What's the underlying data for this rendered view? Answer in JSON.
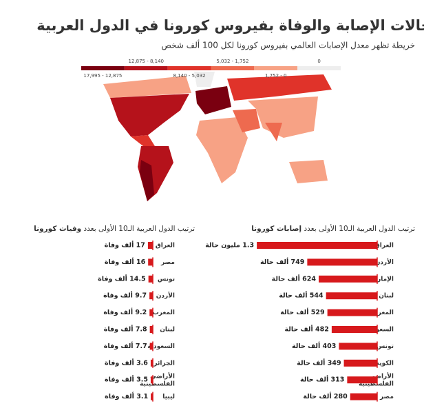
{
  "header": {
    "title": "حالات الإصابة والوفاة بفيروس كورونا في الدول العربية",
    "subtitle": "خريطة تظهر معدل الإصابات العالمي بفيروس كورونا لكل 100 ألف شخص"
  },
  "map_legend": [
    {
      "label": "17,995 - 12,875",
      "color": "#7a0010"
    },
    {
      "label": "12,875 - 8,140",
      "color": "#b5121b"
    },
    {
      "label": "8,140 - 5,032",
      "color": "#e0332a"
    },
    {
      "label": "5,032 - 1,752",
      "color": "#ee6a4f"
    },
    {
      "label": "1,752 - 0",
      "color": "#f7a285"
    },
    {
      "label": "0",
      "color": "#eeeeee"
    }
  ],
  "chart_data": [
    {
      "type": "bar",
      "orientation": "horizontal",
      "title": "ترتيب الدول العربية الـ10 الأولى بعدد",
      "title_emphasis": "إصابات كورونا",
      "color": "#d7191c",
      "categories": [
        "العراق",
        "الأردن",
        "الإمارات",
        "لبنان",
        "المغرب",
        "السعودية",
        "تونس",
        "الكويت",
        "الأراضي الفلسطينية",
        "مصر"
      ],
      "values": [
        1300,
        749,
        624,
        544,
        529,
        482,
        403,
        349,
        313,
        280
      ],
      "value_labels": [
        "1.3 مليون حالة",
        "749 ألف حالة",
        "624 ألف حالة",
        "544 ألف حالة",
        "529 ألف حالة",
        "482 ألف حالة",
        "403 ألف حالة",
        "349 ألف حالة",
        "313 ألف حالة",
        "280 ألف حالة"
      ]
    },
    {
      "type": "bar",
      "orientation": "horizontal",
      "title": "ترتيب الدول العربية الـ10 الأولى بعدد",
      "title_emphasis": "وفيات كورونا",
      "color": "#d7191c",
      "categories": [
        "العراق",
        "مصر",
        "تونس",
        "الأردن",
        "المغرب",
        "لبنان",
        "السعودية",
        "الجزائر",
        "الأراضي الفلسطينية",
        "ليبيا"
      ],
      "values": [
        17,
        16,
        14.5,
        9.7,
        9.2,
        7.8,
        7.7,
        3.6,
        3.5,
        3.1
      ],
      "value_labels": [
        "17 ألف وفاة",
        "16 ألف وفاة",
        "14.5 ألف وفاة",
        "9.7 ألف وفاة",
        "9.2 ألف وفاة",
        "7.8 ألف وفاة",
        "7.7 ألف وفاة",
        "3.6 ألف وفاة",
        "3.5 ألف وفاة",
        "3.1 ألف وفاة"
      ]
    }
  ]
}
